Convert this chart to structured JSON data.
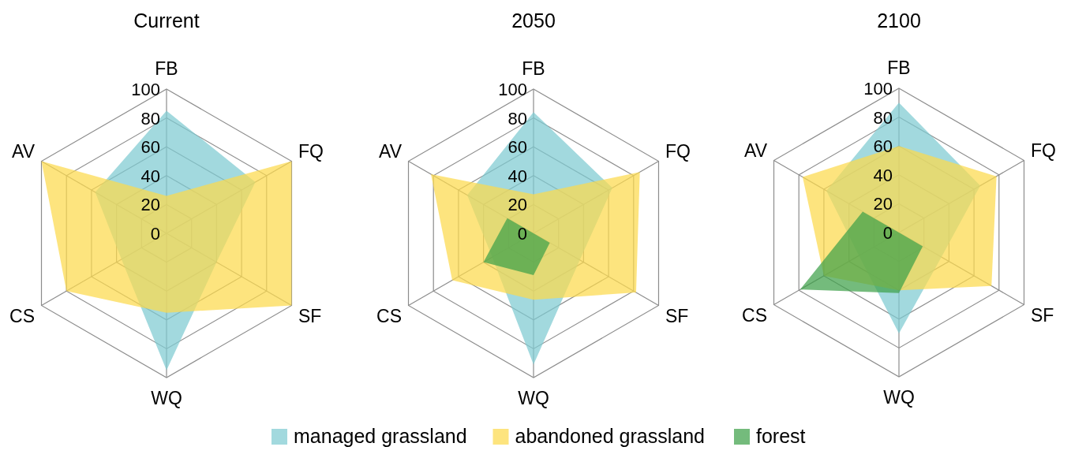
{
  "chart_data": [
    {
      "type": "radar",
      "title": "Current",
      "categories": [
        "FB",
        "FQ",
        "SF",
        "WQ",
        "CS",
        "AV"
      ],
      "ylim": [
        0,
        100
      ],
      "yticks": [
        0,
        20,
        40,
        60,
        80,
        100
      ],
      "grid": true,
      "legend": "bottom",
      "series": [
        {
          "name": "managed grassland",
          "color": "#7ecbd1",
          "values": [
            85,
            71,
            40,
            95,
            36,
            57
          ]
        },
        {
          "name": "abandoned grassland",
          "color": "#fcd94c",
          "values": [
            26,
            100,
            100,
            55,
            80,
            100
          ]
        }
      ]
    },
    {
      "type": "radar",
      "title": "2050",
      "categories": [
        "FB",
        "FQ",
        "SF",
        "WQ",
        "CS",
        "AV"
      ],
      "ylim": [
        0,
        100
      ],
      "yticks": [
        0,
        20,
        40,
        60,
        80,
        100
      ],
      "grid": true,
      "legend": "bottom",
      "series": [
        {
          "name": "managed grassland",
          "color": "#7ecbd1",
          "values": [
            84,
            63,
            37,
            91,
            33,
            53
          ]
        },
        {
          "name": "abandoned grassland",
          "color": "#fcd94c",
          "values": [
            27,
            85,
            82,
            46,
            65,
            82
          ]
        },
        {
          "name": "forest",
          "color": "#3ea14a",
          "values": [
            0,
            0,
            13,
            29,
            40,
            21
          ]
        }
      ]
    },
    {
      "type": "radar",
      "title": "2100",
      "categories": [
        "FB",
        "FQ",
        "SF",
        "WQ",
        "CS",
        "AV"
      ],
      "ylim": [
        0,
        100
      ],
      "yticks": [
        0,
        20,
        40,
        60,
        80,
        100
      ],
      "grid": true,
      "legend": "bottom",
      "series": [
        {
          "name": "managed grassland",
          "color": "#7ecbd1",
          "values": [
            90,
            65,
            34,
            70,
            32,
            58
          ]
        },
        {
          "name": "abandoned grassland",
          "color": "#fcd94c",
          "values": [
            60,
            78,
            74,
            40,
            60,
            77
          ]
        },
        {
          "name": "forest",
          "color": "#3ea14a",
          "values": [
            0,
            0,
            19,
            42,
            79,
            29
          ]
        }
      ]
    }
  ]
}
